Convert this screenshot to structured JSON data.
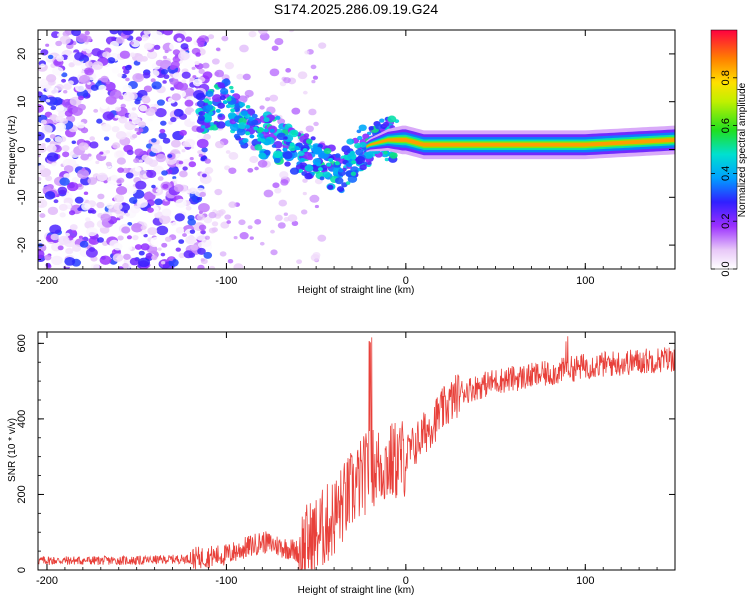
{
  "title": "S174.2025.286.09.19.G24",
  "chart_data": [
    {
      "type": "heatmap",
      "name": "spectrogram",
      "xlabel": "Height of straight line (km)",
      "ylabel": "Frequency (Hz)",
      "xlim": [
        -205,
        150
      ],
      "ylim": [
        -25,
        25
      ],
      "xticks": [
        -200,
        -100,
        0,
        100
      ],
      "xtick_labels": [
        "-200",
        "-100",
        "0",
        "100"
      ],
      "yticks": [
        -20,
        -10,
        0,
        10,
        20
      ],
      "ytick_labels": [
        "-20",
        "-10",
        "0",
        "10",
        "20"
      ],
      "colorbar": {
        "label": "Normalized spectral amplitude",
        "range": [
          0,
          1
        ],
        "ticks": [
          0.0,
          0.2,
          0.4,
          0.6,
          0.8
        ],
        "tick_labels": [
          "0.0",
          "0.2",
          "0.4",
          "0.6",
          "0.8"
        ]
      },
      "ridge": {
        "description_points_x": [
          -115,
          -100,
          -90,
          -80,
          -70,
          -60,
          -50,
          -45,
          -40,
          -35,
          -30,
          -25,
          -20,
          -10,
          0,
          10,
          50,
          100,
          150
        ],
        "description_points_y": [
          8,
          10,
          5,
          3,
          2,
          -1,
          -2,
          -4,
          -3,
          -5,
          -2,
          0,
          1,
          2,
          2,
          1,
          1,
          1,
          2
        ]
      }
    },
    {
      "type": "line",
      "name": "snr",
      "xlabel": "Height of straight line (km)",
      "ylabel": "SNR (10 * v/v)",
      "xlim": [
        -205,
        150
      ],
      "ylim": [
        0,
        630
      ],
      "xticks": [
        -200,
        -100,
        0,
        100
      ],
      "xtick_labels": [
        "-200",
        "-100",
        "0",
        "100"
      ],
      "yticks": [
        0,
        200,
        400,
        600
      ],
      "ytick_labels": [
        "0",
        "200",
        "400",
        "600"
      ],
      "color": "#e8403a",
      "trend_x": [
        -205,
        -150,
        -120,
        -100,
        -80,
        -60,
        -50,
        -40,
        -30,
        -20,
        -10,
        0,
        10,
        20,
        30,
        50,
        80,
        100,
        150
      ],
      "trend_y": [
        25,
        25,
        30,
        40,
        75,
        50,
        90,
        140,
        210,
        270,
        280,
        300,
        360,
        420,
        470,
        500,
        520,
        540,
        560
      ]
    }
  ]
}
